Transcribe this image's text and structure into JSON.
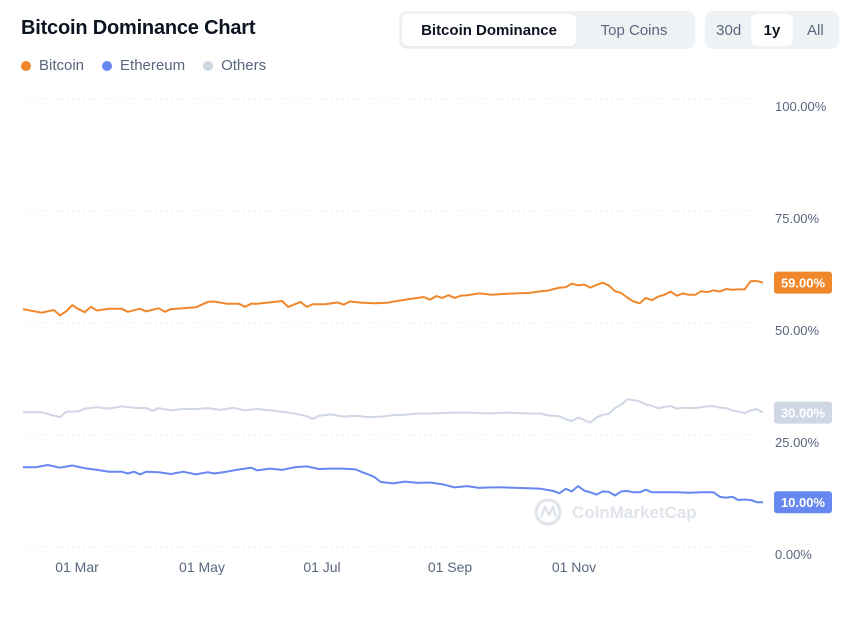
{
  "title": "Bitcoin Dominance Chart",
  "tabs": [
    "Bitcoin Dominance",
    "Top Coins"
  ],
  "ranges": [
    "30d",
    "1y",
    "All"
  ],
  "active_range": "1y",
  "watermark": "CoinMarketCap",
  "colors": {
    "bitcoin": "#f0872a",
    "ethereum": "#6688f0",
    "others": "#cfd6e4"
  },
  "chart_data": {
    "type": "line",
    "title": "Bitcoin Dominance Chart",
    "x_ticks": [
      "01 Mar",
      "01 May",
      "01 Jul",
      "01 Sep",
      "01 Nov"
    ],
    "y_ticks": [
      "100.00%",
      "75.00%",
      "50.00%",
      "25.00%",
      "0.00%"
    ],
    "ylim": [
      0,
      100
    ],
    "grid": true,
    "legend_position": "top-left",
    "series": [
      {
        "name": "Bitcoin",
        "current_label": "59.00%",
        "points": [
          [
            0,
            53.1
          ],
          [
            3,
            52.3
          ],
          [
            5,
            52.9
          ],
          [
            6,
            51.7
          ],
          [
            7,
            52.6
          ],
          [
            8,
            54.0
          ],
          [
            9,
            53.1
          ],
          [
            10,
            52.4
          ],
          [
            11,
            53.6
          ],
          [
            12,
            52.8
          ],
          [
            14,
            53.2
          ],
          [
            16,
            53.2
          ],
          [
            17,
            52.5
          ],
          [
            19,
            53.2
          ],
          [
            20,
            52.6
          ],
          [
            22,
            53.3
          ],
          [
            23,
            52.5
          ],
          [
            24,
            53.1
          ],
          [
            26,
            53.3
          ],
          [
            28,
            53.5
          ],
          [
            30,
            54.7
          ],
          [
            31,
            54.8
          ],
          [
            33,
            54.3
          ],
          [
            35,
            54.3
          ],
          [
            36,
            53.6
          ],
          [
            37,
            54.3
          ],
          [
            38,
            54.3
          ],
          [
            40,
            54.6
          ],
          [
            42,
            54.9
          ],
          [
            43,
            53.6
          ],
          [
            45,
            54.7
          ],
          [
            46,
            53.6
          ],
          [
            47,
            54.2
          ],
          [
            49,
            54.2
          ],
          [
            51,
            54.6
          ],
          [
            52,
            54.1
          ],
          [
            53,
            54.8
          ],
          [
            55,
            54.5
          ],
          [
            57,
            54.4
          ],
          [
            59,
            54.5
          ],
          [
            61,
            55.0
          ],
          [
            63,
            55.4
          ],
          [
            65,
            55.8
          ],
          [
            66,
            55.2
          ],
          [
            67,
            56.0
          ],
          [
            68,
            55.6
          ],
          [
            69,
            56.2
          ],
          [
            70,
            55.6
          ],
          [
            71,
            56.1
          ],
          [
            72,
            56.2
          ],
          [
            74,
            56.6
          ],
          [
            76,
            56.3
          ],
          [
            78,
            56.5
          ],
          [
            80,
            56.6
          ],
          [
            82,
            56.7
          ],
          [
            84,
            57.1
          ],
          [
            85,
            57.2
          ],
          [
            87,
            57.9
          ],
          [
            88,
            58.0
          ],
          [
            89,
            58.8
          ],
          [
            90,
            58.4
          ],
          [
            91,
            58.6
          ],
          [
            92,
            57.9
          ],
          [
            93,
            58.5
          ],
          [
            94,
            59.0
          ],
          [
            95,
            58.4
          ],
          [
            96,
            57.1
          ],
          [
            97,
            56.7
          ],
          [
            98,
            55.7
          ],
          [
            99,
            54.8
          ],
          [
            100,
            54.4
          ],
          [
            101,
            55.6
          ],
          [
            102,
            55.1
          ],
          [
            103,
            55.9
          ],
          [
            104,
            56.3
          ],
          [
            105,
            57.0
          ],
          [
            106,
            56.1
          ],
          [
            107,
            56.6
          ],
          [
            108,
            56.3
          ],
          [
            109,
            56.3
          ],
          [
            110,
            57.1
          ],
          [
            111,
            56.9
          ],
          [
            112,
            57.3
          ],
          [
            113,
            57.0
          ],
          [
            114,
            57.6
          ],
          [
            115,
            57.4
          ],
          [
            116,
            57.5
          ],
          [
            117,
            57.5
          ],
          [
            118,
            59.3
          ],
          [
            119,
            59.4
          ],
          [
            120,
            59.0
          ]
        ]
      },
      {
        "name": "Ethereum",
        "current_label": "10.00%",
        "points": [
          [
            0,
            17.8
          ],
          [
            2,
            17.8
          ],
          [
            4,
            18.3
          ],
          [
            6,
            17.7
          ],
          [
            8,
            18.2
          ],
          [
            10,
            17.6
          ],
          [
            12,
            17.2
          ],
          [
            14,
            16.8
          ],
          [
            16,
            16.8
          ],
          [
            17,
            16.4
          ],
          [
            18,
            16.8
          ],
          [
            19,
            16.2
          ],
          [
            20,
            16.8
          ],
          [
            22,
            16.7
          ],
          [
            24,
            16.3
          ],
          [
            26,
            16.8
          ],
          [
            28,
            16.2
          ],
          [
            30,
            16.7
          ],
          [
            31,
            16.4
          ],
          [
            33,
            16.8
          ],
          [
            35,
            17.3
          ],
          [
            37,
            17.7
          ],
          [
            38,
            17.1
          ],
          [
            40,
            17.5
          ],
          [
            42,
            17.2
          ],
          [
            44,
            17.8
          ],
          [
            46,
            18.0
          ],
          [
            48,
            17.4
          ],
          [
            50,
            17.5
          ],
          [
            52,
            17.5
          ],
          [
            54,
            17.3
          ],
          [
            55,
            16.7
          ],
          [
            56,
            16.2
          ],
          [
            57,
            15.6
          ],
          [
            58,
            14.5
          ],
          [
            60,
            14.2
          ],
          [
            62,
            14.6
          ],
          [
            64,
            14.3
          ],
          [
            66,
            14.4
          ],
          [
            68,
            14.0
          ],
          [
            70,
            13.3
          ],
          [
            72,
            13.6
          ],
          [
            74,
            13.2
          ],
          [
            76,
            13.3
          ],
          [
            78,
            13.3
          ],
          [
            80,
            13.2
          ],
          [
            82,
            13.1
          ],
          [
            84,
            13.0
          ],
          [
            86,
            12.5
          ],
          [
            87,
            12.0
          ],
          [
            88,
            13.0
          ],
          [
            89,
            12.4
          ],
          [
            90,
            13.6
          ],
          [
            91,
            12.6
          ],
          [
            92,
            12.2
          ],
          [
            93,
            11.7
          ],
          [
            94,
            12.4
          ],
          [
            95,
            12.3
          ],
          [
            96,
            11.5
          ],
          [
            97,
            12.4
          ],
          [
            98,
            12.5
          ],
          [
            99,
            12.2
          ],
          [
            100,
            12.2
          ],
          [
            101,
            12.8
          ],
          [
            102,
            12.2
          ],
          [
            104,
            12.2
          ],
          [
            106,
            12.2
          ],
          [
            108,
            12.1
          ],
          [
            110,
            12.2
          ],
          [
            112,
            12.2
          ],
          [
            113,
            11.2
          ],
          [
            114,
            11.0
          ],
          [
            115,
            11.2
          ],
          [
            116,
            10.5
          ],
          [
            117,
            10.6
          ],
          [
            118,
            10.5
          ],
          [
            119,
            10.0
          ],
          [
            120,
            10.0
          ]
        ]
      },
      {
        "name": "Others",
        "current_label": "30.00%",
        "points": [
          [
            0,
            30.1
          ],
          [
            3,
            30.1
          ],
          [
            5,
            29.3
          ],
          [
            6,
            29.0
          ],
          [
            7,
            30.2
          ],
          [
            9,
            30.3
          ],
          [
            10,
            30.9
          ],
          [
            12,
            31.2
          ],
          [
            14,
            30.9
          ],
          [
            16,
            31.4
          ],
          [
            18,
            31.1
          ],
          [
            20,
            31.0
          ],
          [
            21,
            30.4
          ],
          [
            22,
            31.0
          ],
          [
            24,
            30.5
          ],
          [
            26,
            30.8
          ],
          [
            28,
            30.8
          ],
          [
            30,
            31.0
          ],
          [
            32,
            30.6
          ],
          [
            33,
            30.8
          ],
          [
            34,
            31.1
          ],
          [
            36,
            30.5
          ],
          [
            38,
            30.8
          ],
          [
            40,
            30.5
          ],
          [
            42,
            30.2
          ],
          [
            44,
            29.8
          ],
          [
            46,
            29.2
          ],
          [
            47,
            28.6
          ],
          [
            48,
            29.3
          ],
          [
            50,
            29.6
          ],
          [
            52,
            29.1
          ],
          [
            54,
            29.3
          ],
          [
            56,
            29.0
          ],
          [
            58,
            29.1
          ],
          [
            60,
            29.4
          ],
          [
            62,
            29.5
          ],
          [
            64,
            29.8
          ],
          [
            66,
            29.8
          ],
          [
            68,
            29.9
          ],
          [
            70,
            30.0
          ],
          [
            72,
            30.0
          ],
          [
            74,
            29.9
          ],
          [
            76,
            29.8
          ],
          [
            78,
            30.0
          ],
          [
            80,
            29.9
          ],
          [
            82,
            29.8
          ],
          [
            84,
            29.8
          ],
          [
            85,
            29.4
          ],
          [
            87,
            29.2
          ],
          [
            88,
            28.5
          ],
          [
            89,
            28.1
          ],
          [
            90,
            28.9
          ],
          [
            92,
            27.8
          ],
          [
            93,
            28.9
          ],
          [
            94,
            29.5
          ],
          [
            95,
            29.7
          ],
          [
            96,
            31.0
          ],
          [
            97,
            31.8
          ],
          [
            98,
            33.0
          ],
          [
            99,
            32.8
          ],
          [
            100,
            32.5
          ],
          [
            101,
            31.8
          ],
          [
            102,
            31.5
          ],
          [
            103,
            31.0
          ],
          [
            105,
            31.5
          ],
          [
            106,
            30.9
          ],
          [
            107,
            31.1
          ],
          [
            109,
            31.0
          ],
          [
            111,
            31.4
          ],
          [
            112,
            31.4
          ],
          [
            113,
            31.1
          ],
          [
            114,
            31.0
          ],
          [
            115,
            30.5
          ],
          [
            116,
            30.2
          ],
          [
            117,
            29.9
          ],
          [
            118,
            30.5
          ],
          [
            119,
            30.8
          ],
          [
            120,
            30.0
          ]
        ]
      }
    ]
  }
}
